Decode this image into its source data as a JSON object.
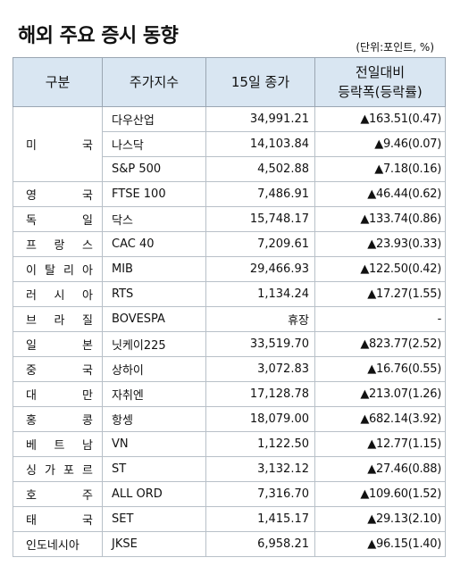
{
  "title": "해외 주요 증시 동향",
  "unit": "(단위:포인트, %)",
  "headers": {
    "country": "구분",
    "index": "주가지수",
    "close": "15일 종가",
    "change_line1": "전일대비",
    "change_line2": "등락폭(등락률)"
  },
  "us": {
    "country": "미 국",
    "rows": [
      {
        "index": "다우산업",
        "close": "34,991.21",
        "change": "▲163.51(0.47)"
      },
      {
        "index": "나스닥",
        "close": "14,103.84",
        "change": "▲9.46(0.07)"
      },
      {
        "index": "S&P 500",
        "close": "4,502.88",
        "change": "▲7.18(0.16)"
      }
    ]
  },
  "rows": [
    {
      "country": "영 국",
      "index": "FTSE 100",
      "close": "7,486.91",
      "change": "▲46.44(0.62)"
    },
    {
      "country": "독 일",
      "index": "닥스",
      "close": "15,748.17",
      "change": "▲133.74(0.86)"
    },
    {
      "country": "프 랑 스",
      "index": "CAC 40",
      "close": "7,209.61",
      "change": "▲23.93(0.33)"
    },
    {
      "country": "이 탈 리 아",
      "index": "MIB",
      "close": "29,466.93",
      "change": "▲122.50(0.42)"
    },
    {
      "country": "러 시 아",
      "index": "RTS",
      "close": "1,134.24",
      "change": "▲17.27(1.55)"
    },
    {
      "country": "브 라 질",
      "index": "BOVESPA",
      "close": "휴장",
      "change": "-"
    },
    {
      "country": "일 본",
      "index": "닛케이225",
      "close": "33,519.70",
      "change": "▲823.77(2.52)"
    },
    {
      "country": "중 국",
      "index": "상하이",
      "close": "3,072.83",
      "change": "▲16.76(0.55)"
    },
    {
      "country": "대 만",
      "index": "자취엔",
      "close": "17,128.78",
      "change": "▲213.07(1.26)"
    },
    {
      "country": "홍 콩",
      "index": "항셍",
      "close": "18,079.00",
      "change": "▲682.14(3.92)"
    },
    {
      "country": "베 트 남",
      "index": "VN",
      "close": "1,122.50",
      "change": "▲12.77(1.15)"
    },
    {
      "country": "싱 가 포 르",
      "index": "ST",
      "close": "3,132.12",
      "change": "▲27.46(0.88)"
    },
    {
      "country": "호 주",
      "index": "ALL ORD",
      "close": "7,316.70",
      "change": "▲109.60(1.52)"
    },
    {
      "country": "태 국",
      "index": "SET",
      "close": "1,415.17",
      "change": "▲29.13(2.10)"
    },
    {
      "country": "인도네시아",
      "index": "JKSE",
      "close": "6,958.21",
      "change": "▲96.15(1.40)"
    }
  ]
}
